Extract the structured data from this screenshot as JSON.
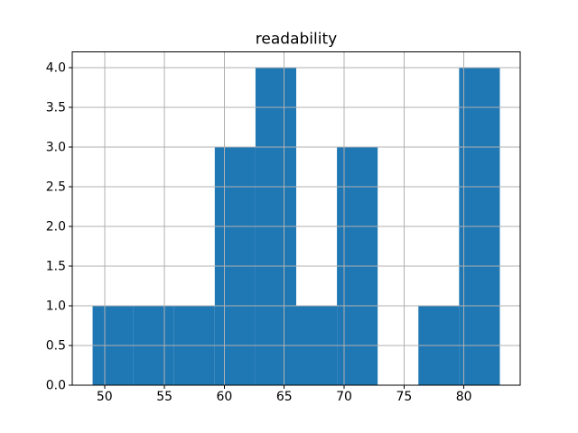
{
  "figure": {
    "background": "#ffffff"
  },
  "chart_data": {
    "type": "bar",
    "subtype": "histogram",
    "title": "readability",
    "xlabel": "",
    "ylabel": "",
    "bin_edges": [
      49.0,
      52.4,
      55.8,
      59.2,
      62.6,
      66.0,
      69.4,
      72.8,
      76.2,
      79.6,
      83.0
    ],
    "counts": [
      1,
      1,
      1,
      3,
      4,
      1,
      3,
      0,
      1,
      4
    ],
    "xlim": [
      47.3,
      84.7
    ],
    "ylim": [
      0,
      4.2
    ],
    "x_ticks": [
      50,
      55,
      60,
      65,
      70,
      75,
      80
    ],
    "x_tick_labels": [
      "50",
      "55",
      "60",
      "65",
      "70",
      "75",
      "80"
    ],
    "y_ticks": [
      0.0,
      0.5,
      1.0,
      1.5,
      2.0,
      2.5,
      3.0,
      3.5,
      4.0
    ],
    "y_tick_labels": [
      "0.0",
      "0.5",
      "1.0",
      "1.5",
      "2.0",
      "2.5",
      "3.0",
      "3.5",
      "4.0"
    ],
    "grid": true,
    "grid_above_bars": true,
    "legend": "none",
    "colors": {
      "bar_fill": "#1f77b4",
      "grid_line": "#b0b0b0",
      "spine": "#000000",
      "tick": "#000000",
      "text": "#000000",
      "plot_background": "#ffffff"
    }
  }
}
